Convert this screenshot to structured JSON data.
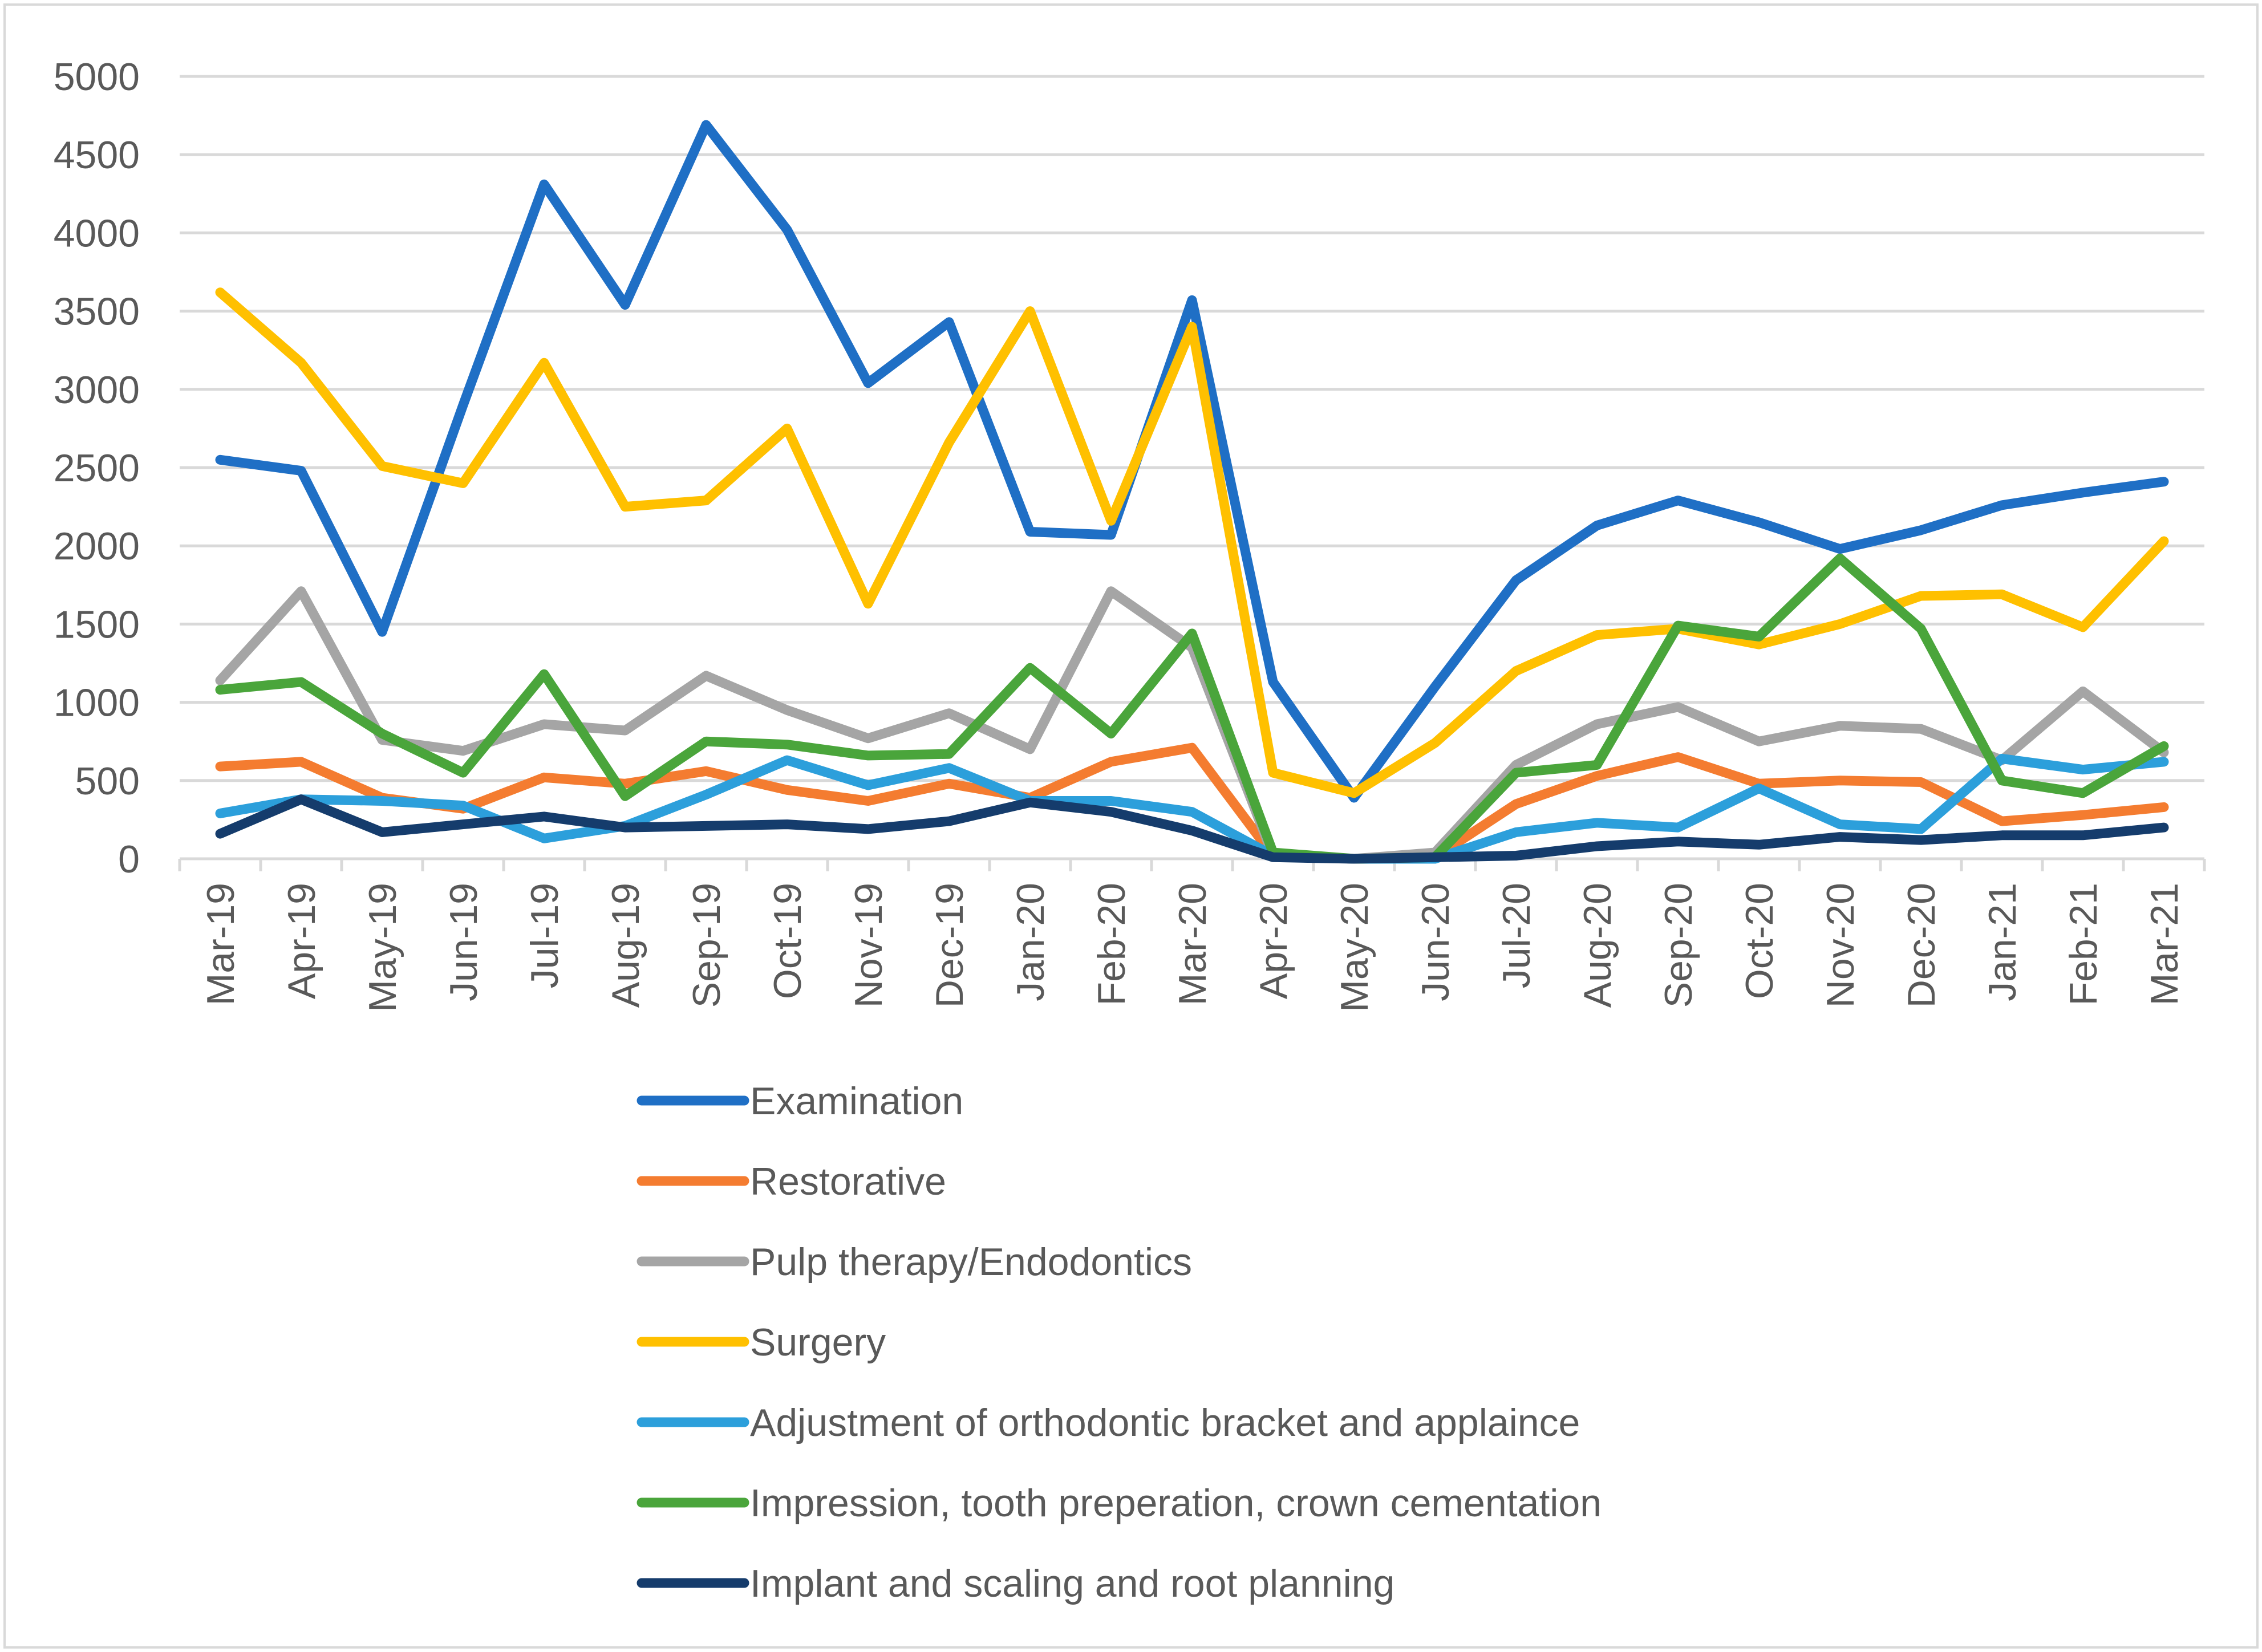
{
  "chart_data": {
    "type": "line",
    "title": "",
    "xlabel": "",
    "ylabel": "",
    "ylim": [
      0,
      5000
    ],
    "yticks": [
      0,
      500,
      1000,
      1500,
      2000,
      2500,
      3000,
      3500,
      4000,
      4500,
      5000
    ],
    "grid": true,
    "legend_position": "bottom",
    "categories": [
      "Mar-19",
      "Apr-19",
      "May-19",
      "Jun-19",
      "Jul-19",
      "Aug-19",
      "Sep-19",
      "Oct-19",
      "Nov-19",
      "Dec-19",
      "Jan-20",
      "Feb-20",
      "Mar-20",
      "Apr-20",
      "May-20",
      "Jun-20",
      "Jul-20",
      "Aug-20",
      "Sep-20",
      "Oct-20",
      "Nov-20",
      "Dec-20",
      "Jan-21",
      "Feb-21",
      "Mar-21"
    ],
    "series": [
      {
        "name": "Examination",
        "color": "#1f6fc5",
        "values": [
          2550,
          2480,
          1450,
          2900,
          4310,
          3540,
          4690,
          4020,
          3040,
          3430,
          2090,
          2070,
          3570,
          1130,
          390,
          1100,
          1780,
          2130,
          2290,
          2150,
          1980,
          2100,
          2260,
          2340,
          2410
        ]
      },
      {
        "name": "Restorative",
        "color": "#f47c30",
        "values": [
          590,
          620,
          390,
          320,
          520,
          480,
          560,
          440,
          370,
          480,
          390,
          620,
          710,
          20,
          0,
          10,
          350,
          530,
          650,
          480,
          500,
          490,
          240,
          280,
          330
        ]
      },
      {
        "name": "Pulp therapy/Endodontics",
        "color": "#a5a5a5",
        "values": [
          1140,
          1710,
          760,
          690,
          860,
          820,
          1170,
          950,
          770,
          930,
          700,
          1710,
          1350,
          20,
          0,
          40,
          600,
          860,
          970,
          750,
          850,
          830,
          630,
          1070,
          680
        ]
      },
      {
        "name": "Surgery",
        "color": "#ffc000",
        "values": [
          3620,
          3170,
          2510,
          2400,
          3170,
          2250,
          2290,
          2750,
          1630,
          2660,
          3500,
          2160,
          3400,
          550,
          420,
          740,
          1200,
          1430,
          1470,
          1370,
          1500,
          1680,
          1690,
          1480,
          2030
        ]
      },
      {
        "name": "Adjustment of orthodontic bracket and applaince",
        "color": "#2c9fdb",
        "values": [
          290,
          380,
          370,
          340,
          130,
          210,
          410,
          630,
          470,
          580,
          370,
          370,
          300,
          20,
          0,
          0,
          170,
          230,
          200,
          450,
          220,
          190,
          640,
          570,
          620
        ]
      },
      {
        "name": "Impression,  tooth preperation, crown cementation",
        "color": "#4aa53b",
        "values": [
          1080,
          1130,
          800,
          550,
          1180,
          400,
          750,
          730,
          660,
          670,
          1220,
          800,
          1440,
          40,
          0,
          10,
          550,
          600,
          1490,
          1420,
          1920,
          1470,
          500,
          420,
          720
        ]
      },
      {
        "name": "Implant and scaling and root planning",
        "color": "#153c6c",
        "values": [
          160,
          380,
          170,
          220,
          270,
          200,
          210,
          220,
          190,
          240,
          360,
          300,
          180,
          10,
          0,
          10,
          20,
          80,
          110,
          90,
          140,
          120,
          150,
          150,
          200
        ]
      }
    ]
  }
}
